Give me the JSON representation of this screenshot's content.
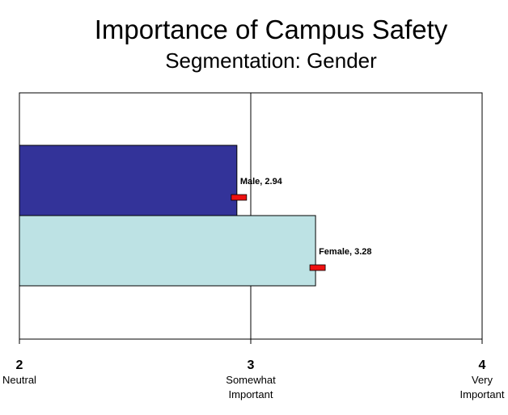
{
  "chart_data": {
    "type": "bar",
    "orientation": "horizontal",
    "title": "Importance of Campus Safety",
    "subtitle": "Segmentation: Gender",
    "categories": [
      "Male",
      "Female"
    ],
    "values": [
      2.94,
      3.28
    ],
    "data_labels": [
      "Male, 2.94",
      "Female, 3.28"
    ],
    "bar_colors": [
      "#333399",
      "#bde2e4"
    ],
    "marker_color": "#ee1111",
    "xlim": [
      2,
      4
    ],
    "x_ticks": [
      {
        "value": 2,
        "number": "2",
        "label_lines": [
          "Neutral"
        ]
      },
      {
        "value": 3,
        "number": "3",
        "label_lines": [
          "Somewhat",
          "Important"
        ]
      },
      {
        "value": 4,
        "number": "4",
        "label_lines": [
          "Very",
          "Important"
        ]
      }
    ],
    "grid": {
      "vertical": true
    },
    "legend": "none"
  }
}
